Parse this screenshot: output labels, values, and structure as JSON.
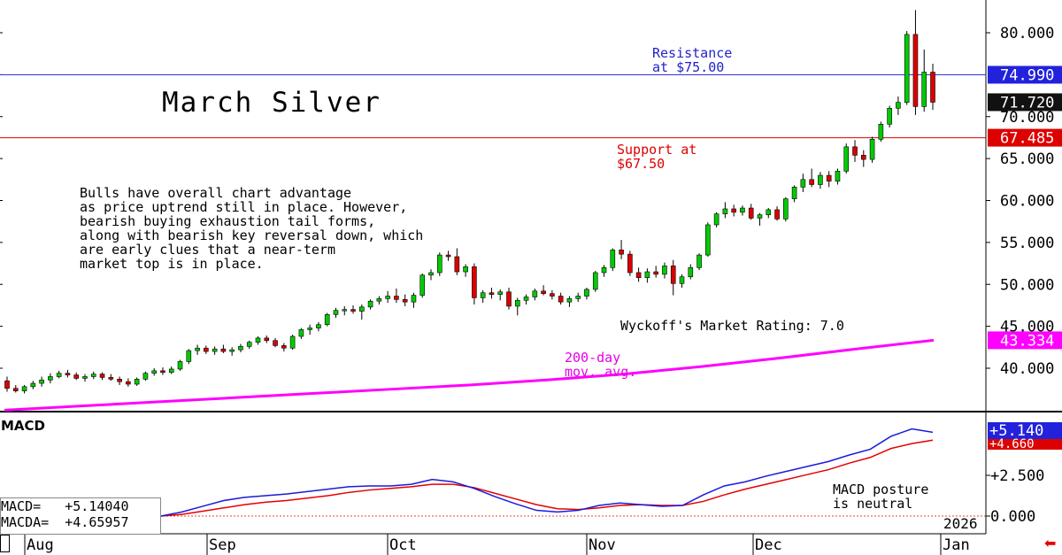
{
  "title": "March Silver",
  "commentary": "Bulls have overall chart advantage\nas price uptrend still in place. However,\nbearish buying exhaustion tail forms,\nalong with bearish key reversal down, which\nare early clues that a near-term\nmarket top is in place.",
  "annotations": {
    "resistance": "Resistance\nat $75.00",
    "support": "Support at\n$67.50",
    "rating": "Wyckoff's Market Rating: 7.0",
    "ma_label": "200-day\nmov. avg.",
    "macd_posture": "MACD posture\nis neutral"
  },
  "colors": {
    "up": "#00cc00",
    "down": "#dd0000",
    "resistance": "#3333dd",
    "support": "#dd0000",
    "ma": "#ff00ff",
    "macd": "#1a1adb",
    "macda": "#e60000"
  },
  "macd_panel": {
    "label": "MACD",
    "readout": "MACD=   +5.14040\nMACDA=  +4.65957",
    "ticks": [
      "+2.500",
      "0.000"
    ],
    "tag_macd": "+5.140",
    "tag_macda": "+4.660"
  },
  "year_label": "2026",
  "chart_data": [
    {
      "type": "candlestick",
      "title": "March Silver",
      "ylim": [
        35,
        85
      ],
      "y_ticks": [
        "40.000",
        "45.000",
        "50.000",
        "55.000",
        "60.000",
        "65.000",
        "70.000",
        "80.000"
      ],
      "x_labels": [
        "Aug",
        "Sep",
        "Oct",
        "Nov",
        "Dec",
        "Jan"
      ],
      "price_tags": [
        {
          "label": "74.990",
          "value": 74.99,
          "color": "#2222dd",
          "text_color": "#ffffff"
        },
        {
          "label": "71.720",
          "value": 71.72,
          "color": "#111111",
          "text_color": "#ffffff"
        },
        {
          "label": "67.485",
          "value": 67.485,
          "color": "#dd0000",
          "text_color": "#ffffff"
        },
        {
          "label": "43.334",
          "value": 43.334,
          "color": "#ff00ff",
          "text_color": "#ffffff"
        }
      ],
      "resistance": 74.99,
      "support": 67.485,
      "ohlc": [
        [
          38.5,
          39.0,
          37.2,
          37.6
        ],
        [
          37.6,
          38.0,
          37.1,
          37.3
        ],
        [
          37.3,
          38.0,
          37.0,
          37.8
        ],
        [
          37.8,
          38.5,
          37.5,
          38.2
        ],
        [
          38.2,
          39.0,
          37.8,
          38.6
        ],
        [
          38.6,
          39.4,
          38.2,
          39.0
        ],
        [
          39.0,
          39.7,
          38.8,
          39.4
        ],
        [
          39.4,
          39.8,
          38.9,
          39.2
        ],
        [
          39.2,
          39.5,
          38.6,
          38.8
        ],
        [
          38.8,
          39.3,
          38.4,
          39.0
        ],
        [
          39.0,
          39.6,
          38.7,
          39.3
        ],
        [
          39.3,
          39.5,
          38.6,
          38.9
        ],
        [
          38.9,
          39.3,
          38.5,
          38.7
        ],
        [
          38.7,
          39.0,
          38.0,
          38.4
        ],
        [
          38.4,
          38.8,
          37.8,
          38.1
        ],
        [
          38.1,
          38.9,
          37.9,
          38.7
        ],
        [
          38.7,
          39.6,
          38.5,
          39.4
        ],
        [
          39.4,
          40.0,
          39.1,
          39.7
        ],
        [
          39.7,
          40.1,
          39.2,
          39.5
        ],
        [
          39.5,
          40.2,
          39.3,
          39.9
        ],
        [
          39.9,
          41.0,
          39.7,
          40.8
        ],
        [
          40.8,
          42.3,
          40.5,
          42.1
        ],
        [
          42.1,
          42.8,
          41.6,
          42.4
        ],
        [
          42.4,
          42.7,
          41.7,
          42.0
        ],
        [
          42.0,
          42.6,
          41.6,
          42.3
        ],
        [
          42.3,
          42.8,
          41.8,
          42.0
        ],
        [
          42.0,
          42.5,
          41.5,
          42.2
        ],
        [
          42.2,
          42.9,
          41.9,
          42.6
        ],
        [
          42.6,
          43.3,
          42.3,
          43.1
        ],
        [
          43.1,
          43.8,
          42.8,
          43.6
        ],
        [
          43.6,
          43.9,
          43.0,
          43.3
        ],
        [
          43.3,
          43.6,
          42.5,
          42.7
        ],
        [
          42.7,
          43.0,
          42.0,
          42.4
        ],
        [
          42.4,
          44.0,
          42.2,
          43.8
        ],
        [
          43.8,
          44.8,
          43.5,
          44.6
        ],
        [
          44.6,
          45.2,
          44.0,
          44.8
        ],
        [
          44.8,
          45.5,
          44.4,
          45.2
        ],
        [
          45.2,
          46.6,
          45.0,
          46.4
        ],
        [
          46.4,
          47.2,
          46.0,
          46.9
        ],
        [
          46.9,
          47.4,
          46.3,
          47.0
        ],
        [
          47.0,
          47.5,
          46.5,
          46.8
        ],
        [
          46.8,
          47.6,
          45.8,
          47.3
        ],
        [
          47.3,
          48.2,
          47.0,
          48.0
        ],
        [
          48.0,
          48.6,
          47.6,
          48.3
        ],
        [
          48.3,
          49.2,
          47.8,
          48.6
        ],
        [
          48.6,
          49.5,
          47.8,
          48.2
        ],
        [
          48.2,
          48.8,
          47.4,
          47.9
        ],
        [
          47.9,
          49.0,
          47.2,
          48.7
        ],
        [
          48.7,
          51.3,
          48.4,
          51.1
        ],
        [
          51.1,
          51.8,
          50.5,
          51.4
        ],
        [
          51.4,
          53.8,
          51.0,
          53.5
        ],
        [
          53.5,
          54.0,
          52.8,
          53.3
        ],
        [
          53.3,
          54.3,
          51.1,
          51.5
        ],
        [
          51.5,
          52.4,
          50.9,
          52.1
        ],
        [
          52.1,
          52.5,
          47.6,
          48.4
        ],
        [
          48.4,
          49.3,
          47.8,
          49.0
        ],
        [
          49.0,
          49.6,
          48.3,
          48.8
        ],
        [
          48.8,
          49.4,
          48.1,
          49.1
        ],
        [
          49.1,
          49.6,
          47.0,
          47.4
        ],
        [
          47.4,
          48.4,
          46.3,
          48.1
        ],
        [
          48.1,
          48.8,
          47.6,
          48.5
        ],
        [
          48.5,
          49.5,
          48.1,
          49.2
        ],
        [
          49.2,
          49.9,
          48.7,
          48.9
        ],
        [
          48.9,
          49.3,
          48.2,
          48.6
        ],
        [
          48.6,
          49.0,
          47.6,
          47.9
        ],
        [
          47.9,
          48.6,
          47.3,
          48.3
        ],
        [
          48.3,
          49.0,
          47.9,
          48.6
        ],
        [
          48.6,
          49.6,
          48.2,
          49.4
        ],
        [
          49.4,
          51.6,
          49.1,
          51.4
        ],
        [
          51.4,
          52.3,
          50.9,
          52.0
        ],
        [
          52.0,
          54.3,
          51.6,
          54.1
        ],
        [
          54.1,
          55.3,
          53.0,
          53.6
        ],
        [
          53.6,
          54.0,
          51.0,
          51.4
        ],
        [
          51.4,
          52.0,
          50.3,
          50.8
        ],
        [
          50.8,
          51.9,
          50.2,
          51.5
        ],
        [
          51.5,
          52.2,
          50.8,
          51.2
        ],
        [
          51.2,
          52.6,
          50.7,
          52.2
        ],
        [
          52.2,
          52.9,
          48.7,
          50.1
        ],
        [
          50.1,
          51.2,
          49.6,
          50.9
        ],
        [
          50.9,
          52.4,
          50.6,
          52.0
        ],
        [
          52.0,
          53.7,
          51.7,
          53.5
        ],
        [
          53.5,
          57.4,
          53.3,
          57.1
        ],
        [
          57.1,
          58.6,
          56.8,
          58.4
        ],
        [
          58.4,
          59.8,
          57.9,
          59.0
        ],
        [
          59.0,
          59.5,
          58.1,
          58.6
        ],
        [
          58.6,
          59.4,
          58.2,
          59.1
        ],
        [
          59.1,
          59.6,
          57.7,
          57.9
        ],
        [
          57.9,
          58.5,
          57.0,
          58.3
        ],
        [
          58.3,
          59.1,
          57.9,
          58.9
        ],
        [
          58.9,
          59.3,
          57.6,
          57.8
        ],
        [
          57.8,
          60.4,
          57.5,
          60.2
        ],
        [
          60.2,
          61.8,
          59.8,
          61.6
        ],
        [
          61.6,
          63.2,
          61.0,
          62.5
        ],
        [
          62.5,
          63.8,
          61.6,
          61.9
        ],
        [
          61.9,
          63.4,
          61.4,
          63.0
        ],
        [
          63.0,
          63.5,
          61.6,
          62.3
        ],
        [
          62.3,
          63.8,
          61.9,
          63.5
        ],
        [
          63.5,
          66.8,
          63.2,
          66.4
        ],
        [
          66.4,
          67.2,
          64.6,
          65.4
        ],
        [
          65.4,
          66.0,
          64.0,
          64.9
        ],
        [
          64.9,
          67.6,
          64.5,
          67.3
        ],
        [
          67.3,
          69.4,
          67.0,
          69.1
        ],
        [
          69.1,
          71.3,
          68.7,
          71.0
        ],
        [
          71.0,
          72.4,
          70.2,
          71.7
        ],
        [
          71.7,
          80.2,
          71.4,
          79.8
        ],
        [
          79.8,
          82.7,
          70.2,
          71.2
        ],
        [
          71.2,
          78.0,
          70.6,
          75.3
        ],
        [
          75.3,
          76.3,
          70.8,
          71.72
        ]
      ],
      "moving_average_200": [
        35.0,
        35.5,
        36.0,
        36.5,
        37.0,
        37.5,
        38.0,
        38.6,
        39.3,
        40.2,
        41.2,
        42.3,
        43.334
      ],
      "macd_values": [
        0.0,
        0.25,
        0.6,
        0.95,
        1.15,
        1.25,
        1.35,
        1.5,
        1.65,
        1.8,
        1.85,
        1.85,
        1.95,
        2.25,
        2.1,
        1.7,
        1.2,
        0.75,
        0.35,
        0.25,
        0.35,
        0.65,
        0.8,
        0.7,
        0.6,
        0.65,
        1.3,
        1.85,
        2.1,
        2.45,
        2.75,
        3.05,
        3.35,
        3.75,
        4.1,
        4.9,
        5.35,
        5.14
      ],
      "macda_values": [
        0.0,
        0.1,
        0.3,
        0.5,
        0.7,
        0.85,
        0.95,
        1.1,
        1.25,
        1.45,
        1.6,
        1.7,
        1.8,
        1.95,
        1.95,
        1.75,
        1.4,
        1.05,
        0.7,
        0.45,
        0.4,
        0.5,
        0.65,
        0.7,
        0.65,
        0.65,
        0.9,
        1.3,
        1.65,
        1.95,
        2.25,
        2.55,
        2.85,
        3.25,
        3.6,
        4.15,
        4.45,
        4.66
      ],
      "macd_ylim": [
        -0.3,
        5.8
      ]
    }
  ]
}
